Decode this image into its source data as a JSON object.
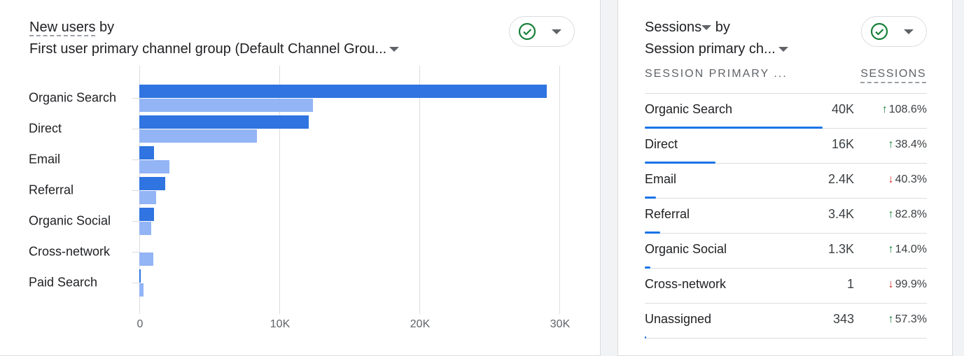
{
  "left_card": {
    "title_metric": "New users",
    "title_by": "by",
    "title_dimension": "First user primary channel group (Default Channel Grou...",
    "status_icon": "check-circle-icon",
    "chart_data": {
      "type": "bar",
      "orientation": "horizontal",
      "categories": [
        "Organic Search",
        "Direct",
        "Email",
        "Referral",
        "Organic Social",
        "Cross-network",
        "Paid Search"
      ],
      "series": [
        {
          "values": [
            29100,
            12100,
            1050,
            1850,
            1050,
            0,
            100
          ],
          "color": "#2f74e0"
        },
        {
          "values": [
            12400,
            8400,
            2150,
            1200,
            850,
            1000,
            300
          ],
          "color": "#93b4f5"
        }
      ],
      "xticks": [
        "0",
        "10K",
        "20K",
        "30K"
      ],
      "xlim": [
        0,
        30000
      ],
      "grid": true
    }
  },
  "right_card": {
    "title_metric": "Sessions",
    "title_by": "by",
    "title_dimension": "Session primary ch...",
    "status_icon": "check-circle-icon",
    "col_dimension": "SESSION PRIMARY ...",
    "col_metric": "SESSIONS",
    "up_color": "#188038",
    "down_color": "#d93025",
    "rows": [
      {
        "name": "Organic Search",
        "value": "40K",
        "change": "108.6%",
        "dir": "up",
        "share": 0.63
      },
      {
        "name": "Direct",
        "value": "16K",
        "change": "38.4%",
        "dir": "up",
        "share": 0.25
      },
      {
        "name": "Email",
        "value": "2.4K",
        "change": "40.3%",
        "dir": "down",
        "share": 0.04
      },
      {
        "name": "Referral",
        "value": "3.4K",
        "change": "82.8%",
        "dir": "up",
        "share": 0.055
      },
      {
        "name": "Organic Social",
        "value": "1.3K",
        "change": "14.0%",
        "dir": "up",
        "share": 0.02
      },
      {
        "name": "Cross-network",
        "value": "1",
        "change": "99.9%",
        "dir": "down",
        "share": 0
      },
      {
        "name": "Unassigned",
        "value": "343",
        "change": "57.3%",
        "dir": "up",
        "share": 0.005
      }
    ]
  }
}
